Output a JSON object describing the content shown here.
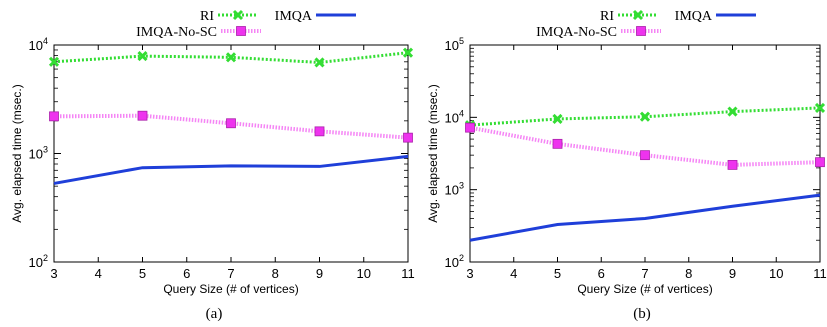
{
  "chart_data": [
    {
      "type": "line",
      "caption": "(a)",
      "xlabel": "Query Size (# of vertices)",
      "ylabel": "Avg. elapsed time (msec.)",
      "yscale": "log",
      "xlim": [
        3,
        11
      ],
      "ylim": [
        100,
        10000
      ],
      "x_ticks": [
        "3",
        "4",
        "5",
        "6",
        "7",
        "8",
        "9",
        "10",
        "11"
      ],
      "y_ticks": [
        {
          "value": 100,
          "base": "10",
          "exp": "2"
        },
        {
          "value": 1000,
          "base": "10",
          "exp": "3"
        },
        {
          "value": 10000,
          "base": "10",
          "exp": "4"
        }
      ],
      "legend": "top",
      "series": [
        {
          "name": "RI",
          "color": "#33dd33",
          "marker": "x-icon",
          "x": [
            3,
            5,
            7,
            9,
            11
          ],
          "values": [
            7000,
            7900,
            7700,
            6900,
            8500
          ]
        },
        {
          "name": "IMQA",
          "color": "#1f3fd9",
          "marker": "none",
          "x": [
            3,
            5,
            7,
            9,
            11
          ],
          "values": [
            530,
            740,
            770,
            760,
            940
          ]
        },
        {
          "name": "IMQA-No-SC",
          "color": "#ee33ee",
          "marker": "square-icon",
          "x": [
            3,
            5,
            7,
            9,
            11
          ],
          "values": [
            2200,
            2230,
            1900,
            1600,
            1400
          ]
        }
      ]
    },
    {
      "type": "line",
      "caption": "(b)",
      "xlabel": "Query Size (# of vertices)",
      "ylabel": "Avg. elapsed time (msec.)",
      "yscale": "log",
      "xlim": [
        3,
        11
      ],
      "ylim": [
        100,
        100000
      ],
      "x_ticks": [
        "3",
        "4",
        "5",
        "6",
        "7",
        "8",
        "9",
        "10",
        "11"
      ],
      "y_ticks": [
        {
          "value": 100,
          "base": "10",
          "exp": "2"
        },
        {
          "value": 1000,
          "base": "10",
          "exp": "3"
        },
        {
          "value": 10000,
          "base": "10",
          "exp": "4"
        },
        {
          "value": 100000,
          "base": "10",
          "exp": "5"
        }
      ],
      "legend": "top",
      "series": [
        {
          "name": "RI",
          "color": "#33dd33",
          "marker": "x-icon",
          "x": [
            3,
            5,
            7,
            9,
            11
          ],
          "values": [
            7800,
            9500,
            10200,
            12000,
            13500
          ]
        },
        {
          "name": "IMQA",
          "color": "#1f3fd9",
          "marker": "none",
          "x": [
            3,
            5,
            7,
            9,
            11
          ],
          "values": [
            200,
            330,
            400,
            590,
            840
          ]
        },
        {
          "name": "IMQA-No-SC",
          "color": "#ee33ee",
          "marker": "square-icon",
          "x": [
            3,
            5,
            7,
            9,
            11
          ],
          "values": [
            7200,
            4300,
            3000,
            2200,
            2400
          ]
        }
      ]
    }
  ]
}
